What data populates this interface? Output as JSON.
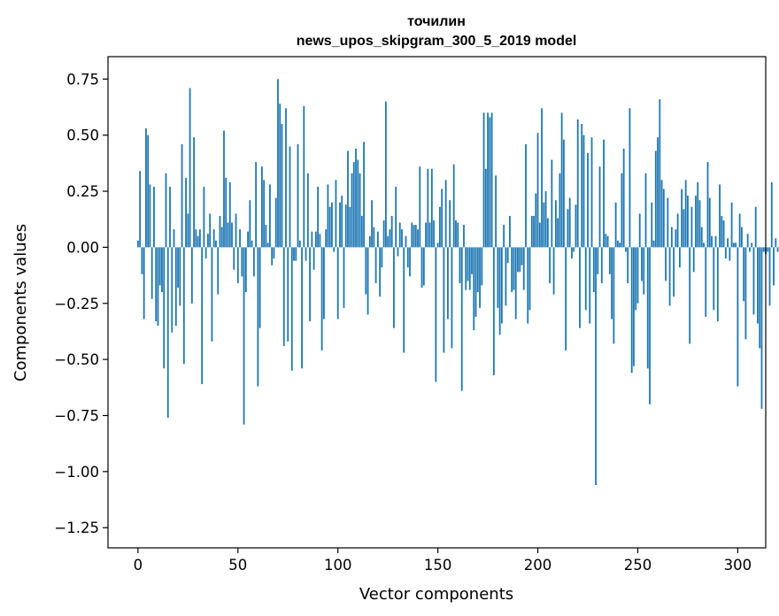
{
  "chart_data": {
    "type": "bar",
    "title_line1": "точилин",
    "title_line2": "news_upos_skipgram_300_5_2019 model",
    "xlabel": "Vector components",
    "ylabel": "Components values",
    "xlim": [
      -15,
      314
    ],
    "ylim": [
      -1.34,
      0.85
    ],
    "xticks": [
      0,
      50,
      100,
      150,
      200,
      250,
      300
    ],
    "xtick_labels": [
      "0",
      "50",
      "100",
      "150",
      "200",
      "250",
      "300"
    ],
    "yticks": [
      0.75,
      0.5,
      0.25,
      0.0,
      -0.25,
      -0.5,
      -0.75,
      -1.0,
      -1.25
    ],
    "ytick_labels": [
      "0.75",
      "0.50",
      "0.25",
      "0.00",
      "−0.25",
      "−0.50",
      "−0.75",
      "−1.00",
      "−1.25"
    ],
    "bar_color": "#1f77b4",
    "bar_width": 0.8,
    "values": [
      0.03,
      0.34,
      -0.12,
      -0.32,
      0.53,
      0.5,
      0.28,
      -0.23,
      0.27,
      -0.33,
      -0.35,
      -0.17,
      -0.2,
      -0.54,
      0.33,
      -0.76,
      0.27,
      -0.38,
      0.08,
      -0.35,
      -0.18,
      -0.26,
      0.46,
      -0.52,
      0.31,
      0.15,
      0.71,
      -0.25,
      0.49,
      0.08,
      0.05,
      0.08,
      -0.61,
      0.27,
      -0.05,
      0.06,
      0.15,
      -0.42,
      0.08,
      0.03,
      -0.21,
      0.14,
      0.09,
      0.52,
      0.31,
      0.11,
      0.29,
      0.11,
      -0.1,
      0.15,
      -0.16,
      0.08,
      -0.13,
      -0.79,
      -0.2,
      0.07,
      0.21,
      0.03,
      -0.13,
      0.38,
      -0.62,
      -0.36,
      0.36,
      0.3,
      0.1,
      0.02,
      0.28,
      -0.08,
      -0.05,
      0.22,
      0.75,
      0.64,
      0.55,
      -0.44,
      0.62,
      -0.42,
      0.45,
      -0.55,
      -0.06,
      -0.06,
      0.46,
      0.03,
      -0.54,
      0.63,
      -0.06,
      0.33,
      -0.33,
      0.07,
      -0.1,
      0.07,
      0.27,
      0.06,
      -0.46,
      -0.32,
      0.08,
      0.28,
      0.18,
      0.2,
      -0.02,
      0.3,
      -0.32,
      0.2,
      0.23,
      -0.27,
      0.19,
      0.43,
      0.18,
      0.33,
      0.38,
      0.44,
      0.39,
      0.33,
      0.14,
      0.47,
      -0.21,
      -0.3,
      0.05,
      0.21,
      0.09,
      -0.16,
      0.07,
      -0.22,
      -0.09,
      0.12,
      0.65,
      0.05,
      0.08,
      0.14,
      -0.36,
      0.27,
      -0.04,
      0.11,
      0.08,
      -0.47,
      0.05,
      -0.09,
      -0.13,
      0.11,
      0.1,
      0.1,
      0.08,
      0.36,
      -0.18,
      -0.17,
      0.11,
      0.35,
      0.11,
      0.35,
      0.12,
      -0.6,
      0.02,
      0.18,
      0.26,
      -0.47,
      0.3,
      -0.32,
      0.21,
      -0.45,
      0.37,
      0.12,
      0.11,
      -0.16,
      -0.64,
      0.1,
      -0.19,
      -0.15,
      -0.19,
      -0.12,
      -0.37,
      -0.31,
      -0.2,
      -0.27,
      -0.17,
      0.6,
      0.35,
      0.6,
      0.58,
      0.6,
      -0.57,
      0.32,
      -0.27,
      -0.39,
      -0.34,
      0.1,
      -0.26,
      -0.07,
      0.14,
      -0.2,
      -0.19,
      -0.32,
      -0.11,
      -0.11,
      -0.08,
      -0.19,
      0.46,
      -0.34,
      -0.28,
      0.14,
      0.14,
      0.24,
      0.51,
      0.11,
      0.62,
      0.2,
      0.25,
      0.13,
      -0.16,
      0.39,
      -0.21,
      0.21,
      0.13,
      0.33,
      0.6,
      0.48,
      -0.46,
      0.17,
      0.22,
      -0.05,
      -0.02,
      0.19,
      0.57,
      -0.36,
      0.55,
      0.5,
      -0.28,
      0.42,
      -0.34,
      0.49,
      -0.2,
      -1.06,
      -0.12,
      0.36,
      -0.16,
      0.48,
      0.06,
      0.05,
      -0.12,
      -0.32,
      -0.43,
      0.2,
      0.03,
      0.02,
      0.33,
      0.44,
      -0.02,
      -0.16,
      0.62,
      -0.56,
      -0.53,
      -0.28,
      -0.25,
      0.15,
      -0.15,
      -0.21,
      0.33,
      -0.54,
      -0.7,
      0.2,
      0.03,
      0.43,
      0.49,
      0.66,
      0.3,
      0.26,
      -0.15,
      0.22,
      -0.26,
      0.09,
      -0.22,
      0.08,
      0.15,
      -0.09,
      0.26,
      0.17,
      0.3,
      0.23,
      -0.43,
      0.18,
      -0.11,
      0.23,
      0.29,
      0.21,
      0.09,
      0.02,
      -0.31,
      0.38,
      0.22,
      0.05,
      -0.28,
      0.05,
      -0.33,
      0.28,
      0.14,
      0.12,
      -0.05,
      0.04,
      -0.06,
      0.2,
      0.02,
      0.02,
      -0.62,
      0.15,
      0.09,
      -0.24,
      -0.41,
      0.06,
      -0.02,
      0.02,
      -0.3,
      0.18,
      -0.34,
      -0.45,
      -0.72,
      -0.02,
      -0.03,
      -0.02,
      -0.26,
      0.29,
      -0.17,
      0.04,
      -0.02,
      0.02
    ]
  }
}
